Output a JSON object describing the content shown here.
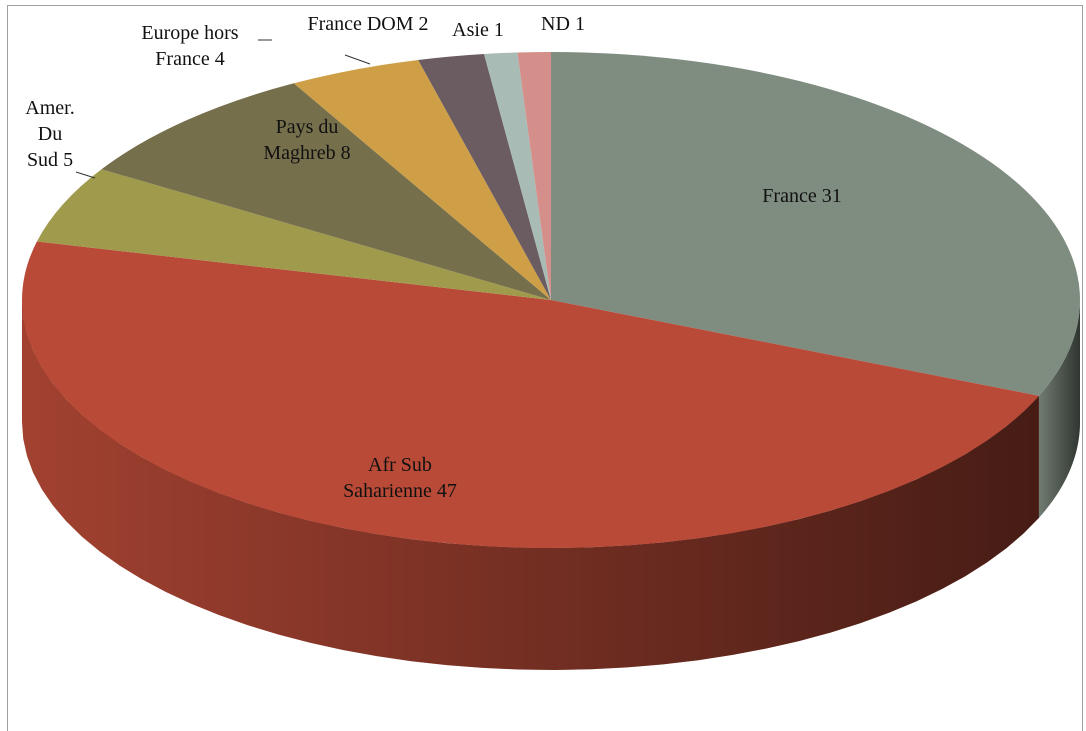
{
  "chart_data": {
    "type": "pie",
    "style": "3d",
    "categories": [
      "France",
      "Afr Sub Saharienne",
      "Amer. Du Sud",
      "Pays du Maghreb",
      "Europe hors France",
      "France DOM",
      "Asie",
      "ND"
    ],
    "values": [
      31,
      47,
      5,
      8,
      4,
      2,
      1,
      1
    ],
    "colors": [
      "#7f8c80",
      "#b84a37",
      "#a09a4c",
      "#756f4c",
      "#cf9f47",
      "#6a5c60",
      "#a9bbb5",
      "#d48f8a"
    ]
  }
}
